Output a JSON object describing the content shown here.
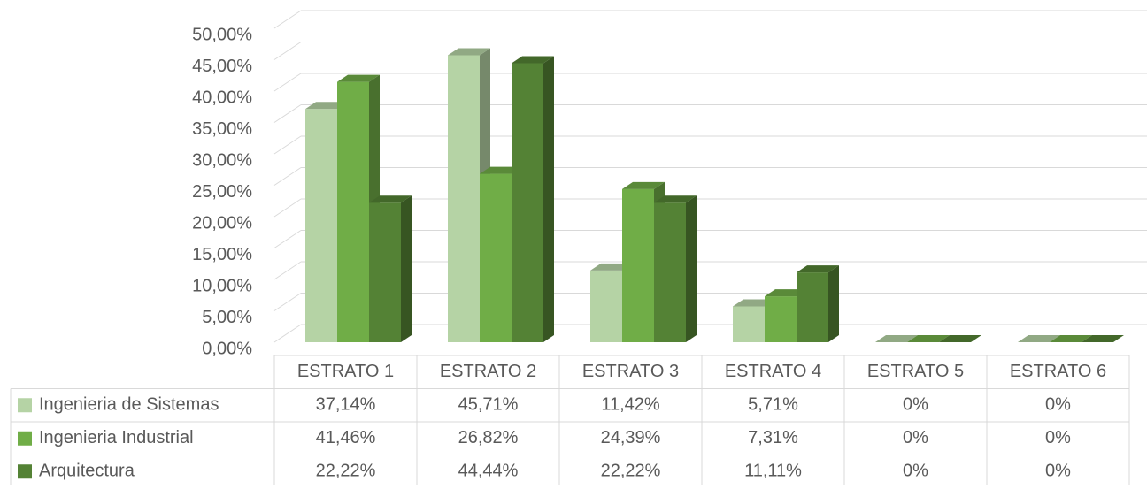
{
  "chart_data": {
    "type": "bar3d",
    "categories": [
      "ESTRATO 1",
      "ESTRATO 2",
      "ESTRATO 3",
      "ESTRATO 4",
      "ESTRATO 5",
      "ESTRATO 6"
    ],
    "series": [
      {
        "name": "Ingenieria de Sistemas",
        "color": "#b5d3a5",
        "values": [
          37.14,
          45.71,
          11.42,
          5.71,
          0,
          0
        ],
        "value_labels": [
          "37,14%",
          "45,71%",
          "11,42%",
          "5,71%",
          "0%",
          "0%"
        ]
      },
      {
        "name": "Ingenieria Industrial",
        "color": "#70ad47",
        "values": [
          41.46,
          26.82,
          24.39,
          7.31,
          0,
          0
        ],
        "value_labels": [
          "41,46%",
          "26,82%",
          "24,39%",
          "7,31%",
          "0%",
          "0%"
        ]
      },
      {
        "name": "Arquitectura",
        "color": "#548235",
        "values": [
          22.22,
          44.44,
          22.22,
          11.11,
          0,
          0
        ],
        "value_labels": [
          "22,22%",
          "44,44%",
          "22,22%",
          "11,11%",
          "0%",
          "0%"
        ]
      }
    ],
    "ylim": [
      0,
      50
    ],
    "yticks": [
      {
        "value": 0,
        "label": "0,00%"
      },
      {
        "value": 5,
        "label": "5,00%"
      },
      {
        "value": 10,
        "label": "10,00%"
      },
      {
        "value": 15,
        "label": "15,00%"
      },
      {
        "value": 20,
        "label": "20,00%"
      },
      {
        "value": 25,
        "label": "25,00%"
      },
      {
        "value": 30,
        "label": "30,00%"
      },
      {
        "value": 35,
        "label": "35,00%"
      },
      {
        "value": 40,
        "label": "40,00%"
      },
      {
        "value": 45,
        "label": "45,00%"
      },
      {
        "value": 50,
        "label": "50,00%"
      }
    ],
    "grid": true
  }
}
